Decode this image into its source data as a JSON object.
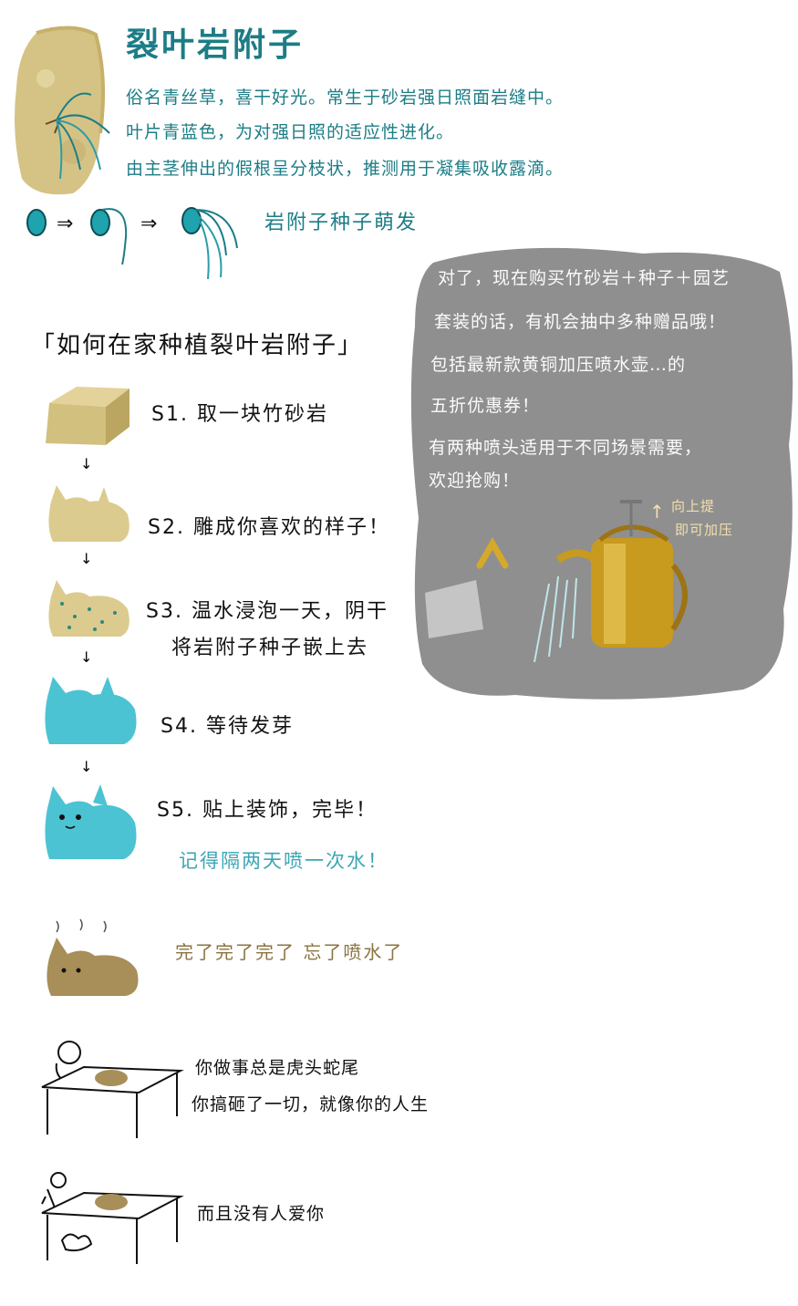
{
  "plant": {
    "title": "裂叶岩附子",
    "intro": [
      "俗名青丝草，喜干好光。常生于砂岩强日照面岩缝中。",
      "叶片青蓝色，为对强日照的适应性进化。",
      "由主茎伸出的假根呈分枝状，推测用于凝集吸收露滴。"
    ],
    "sprout_caption": "岩附子种子萌发"
  },
  "howto": {
    "title": "「如何在家种植裂叶岩附子」",
    "steps": [
      {
        "label": "S1. 取一块竹砂岩"
      },
      {
        "label": "S2. 雕成你喜欢的样子！"
      },
      {
        "label": "S3. 温水浸泡一天，阴干"
      },
      {
        "label": "将岩附子种子嵌上去"
      },
      {
        "label": "S4. 等待发芽"
      },
      {
        "label": "S5. 贴上装饰，完毕！"
      }
    ],
    "remember": "记得隔两天喷一次水！",
    "oops": "完了完了完了 忘了喷水了"
  },
  "promo": {
    "lines": [
      "对了，现在购买竹砂岩＋种子＋园艺",
      "套装的话，有机会抽中多种赠品哦！",
      "包括最新款黄铜加压喷水壶…的",
      "五折优惠券！",
      "有两种喷头适用于不同场景需要，",
      "欢迎抢购！"
    ],
    "hint": [
      "向上提",
      "即可加压"
    ]
  },
  "ending": {
    "panel1": [
      "你做事总是虎头蛇尾",
      "你搞砸了一切，就像你的人生"
    ],
    "panel2": "而且没有人爱你"
  },
  "colors": {
    "teal": "#1c7d86",
    "stone": "#d8c98d",
    "moss": "#3fb8c8",
    "bubble": "#8f8f8f",
    "brass": "#c89a1e"
  }
}
